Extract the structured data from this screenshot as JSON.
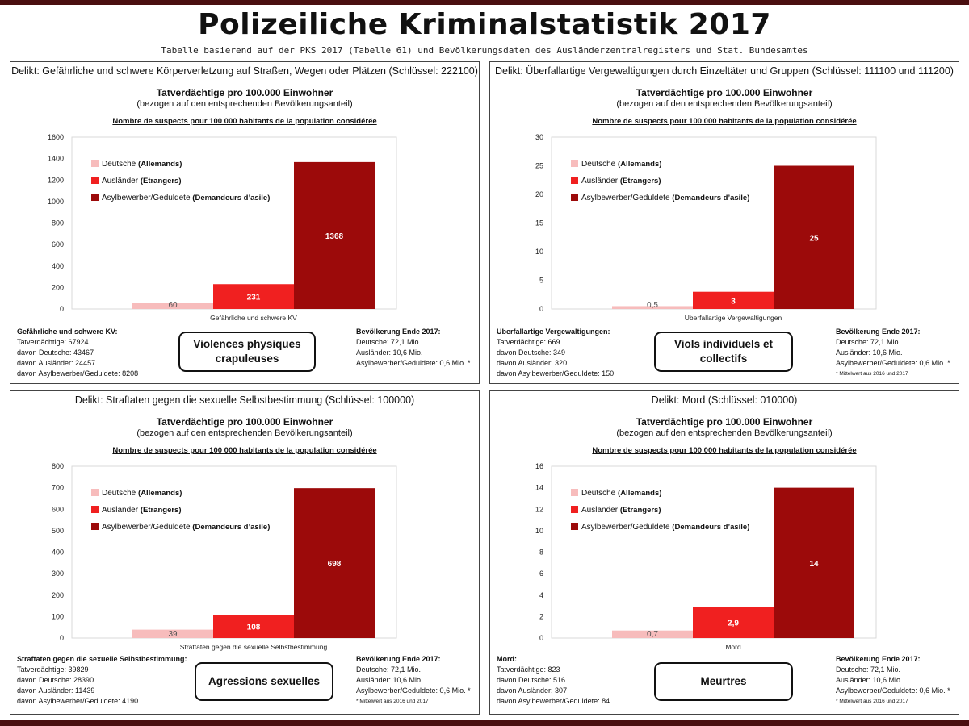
{
  "header": {
    "title": "Polizeiliche Kriminalstatistik 2017",
    "subtitle": "Tabelle basierend auf der PKS 2017 (Tabelle 61) und Bevölkerungsdaten des Ausländerzentralregisters und Stat. Bundesamtes"
  },
  "common": {
    "head1": "Tatverdächtige pro 100.000 Einwohner",
    "head2": "(bezogen auf den entsprechenden Bevölkerungsanteil)",
    "head3": "Nombre de suspects pour 100 000 habitants de la population considérée",
    "pop_title": "Bevölkerung Ende 2017:",
    "pop_de": "Deutsche: 72,1 Mio.",
    "pop_aus": "Ausländer: 10,6 Mio.",
    "pop_asyl": "Asylbewerber/Geduldete: 0,6 Mio. *",
    "pop_note": "* Mittelwert aus 2016 und 2017",
    "colors": {
      "deutsche": "#f7bcbc",
      "auslaender": "#f02020",
      "asyl": "#9c0a0a"
    }
  },
  "panels": [
    {
      "delikt": "Delikt: Gefährliche und schwere Körperverletzung auf Straßen, Wegen oder Plätzen (Schlüssel: 222100)",
      "stats_title": "Gefährliche und schwere KV:",
      "stats_lines": [
        "Tatverdächtige: 67924",
        "davon Deutsche: 43467",
        "davon Ausländer: 24457",
        "davon Asylbewerber/Geduldete: 8208"
      ],
      "fr_label": "Violences physiques crapuleuses",
      "chart_data": {
        "type": "bar",
        "categories": [
          "Gefährliche und schwere KV"
        ],
        "series": [
          {
            "name": "Deutsche (Allemands)",
            "de": "Deutsche",
            "fr": "(Allemands)",
            "values": [
              60
            ],
            "label": "60"
          },
          {
            "name": "Ausländer (Etrangers)",
            "de": "Ausländer",
            "fr": "(Etrangers)",
            "values": [
              231
            ],
            "label": "231"
          },
          {
            "name": "Asylbewerber/Geduldete (Demandeurs d’asile)",
            "de": "Asylbewerber/Geduldete",
            "fr": "(Demandeurs d’asile)",
            "values": [
              1368
            ],
            "label": "1368"
          }
        ],
        "yticks": [
          "0",
          "200",
          "400",
          "600",
          "800",
          "1000",
          "1200",
          "1400",
          "1600"
        ],
        "ylim": [
          0,
          1600
        ],
        "xlabel": "Gefährliche und schwere KV"
      }
    },
    {
      "delikt": "Delikt: Überfallartige Vergewaltigungen durch Einzeltäter und Gruppen (Schlüssel: 111100 und 111200)",
      "stats_title": "Überfallartige Vergewaltigungen:",
      "stats_lines": [
        "Tatverdächtige: 669",
        "davon Deutsche: 349",
        "davon Ausländer: 320",
        "davon Asylbewerber/Geduldete: 150"
      ],
      "fr_label": "Viols individuels et collectifs",
      "chart_data": {
        "type": "bar",
        "categories": [
          "Überfallartige Vergewaltigungen"
        ],
        "series": [
          {
            "name": "Deutsche (Allemands)",
            "de": "Deutsche",
            "fr": "(Allemands)",
            "values": [
              0.5
            ],
            "label": "0,5"
          },
          {
            "name": "Ausländer (Etrangers)",
            "de": "Ausländer",
            "fr": "(Etrangers)",
            "values": [
              3
            ],
            "label": "3"
          },
          {
            "name": "Asylbewerber/Geduldete (Demandeurs d’asile)",
            "de": "Asylbewerber/Geduldete",
            "fr": "(Demandeurs d’asile)",
            "values": [
              25
            ],
            "label": "25"
          }
        ],
        "yticks": [
          "0",
          "5",
          "10",
          "15",
          "20",
          "25",
          "30"
        ],
        "ylim": [
          0,
          30
        ],
        "xlabel": "Überfallartige Vergewaltigungen"
      }
    },
    {
      "delikt": "Delikt: Straftaten gegen die sexuelle Selbstbestimmung (Schlüssel: 100000)",
      "stats_title": "Straftaten gegen die sexuelle Selbstbestimmung:",
      "stats_lines": [
        "Tatverdächtige: 39829",
        "davon Deutsche: 28390",
        "davon Ausländer: 11439",
        "davon Asylbewerber/Geduldete: 4190"
      ],
      "fr_label": "Agressions sexuelles",
      "chart_data": {
        "type": "bar",
        "categories": [
          "Straftaten gegen die sexuelle Selbstbestimmung"
        ],
        "series": [
          {
            "name": "Deutsche(Allemands)",
            "de": "Deutsche",
            "fr": "(Allemands)",
            "values": [
              39
            ],
            "label": "39"
          },
          {
            "name": "Ausländer(Etrangers)",
            "de": "Ausländer",
            "fr": "(Etrangers)",
            "values": [
              108
            ],
            "label": "108"
          },
          {
            "name": "Asylbewerber/Geduldete (Demandeurs d’asile)",
            "de": "Asylbewerber/Geduldete",
            "fr": "(Demandeurs d’asile)",
            "values": [
              698
            ],
            "label": "698"
          }
        ],
        "yticks": [
          "0",
          "100",
          "200",
          "300",
          "400",
          "500",
          "600",
          "700",
          "800"
        ],
        "ylim": [
          0,
          800
        ],
        "xlabel": "Straftaten gegen die sexuelle Selbstbestimmung"
      }
    },
    {
      "delikt": "Delikt: Mord (Schlüssel: 010000)",
      "stats_title": "Mord:",
      "stats_lines": [
        "Tatverdächtige: 823",
        "davon Deutsche: 516",
        "davon Ausländer: 307",
        "davon Asylbewerber/Geduldete: 84"
      ],
      "fr_label": "Meurtres",
      "chart_data": {
        "type": "bar",
        "categories": [
          "Mord"
        ],
        "series": [
          {
            "name": "Deutsche (Allemands)",
            "de": "Deutsche",
            "fr": "(Allemands)",
            "values": [
              0.7
            ],
            "label": "0,7"
          },
          {
            "name": "Ausländer (Etrangers)",
            "de": "Ausländer",
            "fr": "(Etrangers)",
            "values": [
              2.9
            ],
            "label": "2,9"
          },
          {
            "name": "Asylbewerber/Geduldete (Demandeurs d’asile)",
            "de": "Asylbewerber/Geduldete",
            "fr": "(Demandeurs d’asile)",
            "values": [
              14
            ],
            "label": "14"
          }
        ],
        "yticks": [
          "0",
          "2",
          "4",
          "6",
          "8",
          "10",
          "12",
          "14",
          "16"
        ],
        "ylim": [
          0,
          16
        ],
        "xlabel": "Mord"
      }
    }
  ]
}
